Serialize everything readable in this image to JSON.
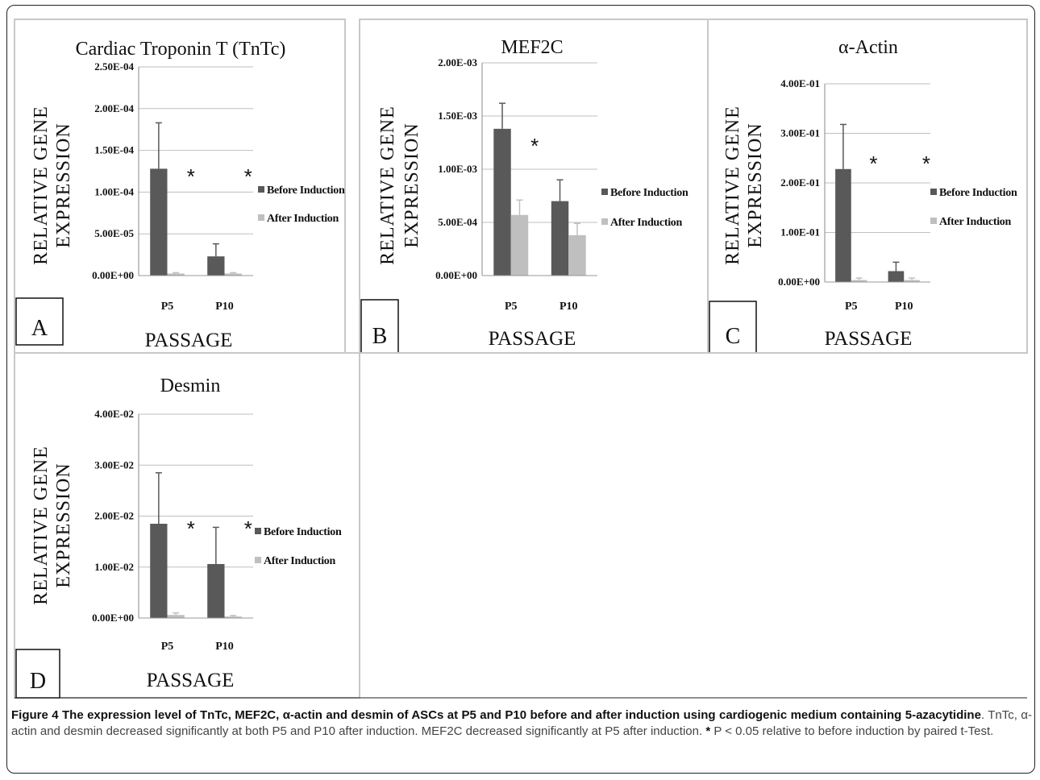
{
  "panels": [
    {
      "letter": "A",
      "title": "Cardiac Troponin T (TnTc)",
      "ylabel_line1": "RELATIVE GENE",
      "ylabel_line2": "EXPRESSION",
      "xlabel": "PASSAGE",
      "legend": [
        "Before Induction",
        "After Induction"
      ]
    },
    {
      "letter": "B",
      "title": "MEF2C",
      "ylabel_line1": "RELATIVE GENE",
      "ylabel_line2": "EXPRESSION",
      "xlabel": "PASSAGE",
      "legend": [
        "Before Induction",
        "After Induction"
      ]
    },
    {
      "letter": "C",
      "title": "α-Actin",
      "ylabel_line1": "RELATIVE GENE",
      "ylabel_line2": "EXPRESSION",
      "xlabel": "PASSAGE",
      "legend": [
        "Before Induction",
        "After Induction"
      ]
    },
    {
      "letter": "D",
      "title": "Desmin",
      "ylabel_line1": "RELATIVE GENE",
      "ylabel_line2": "EXPRESSION",
      "xlabel": "PASSAGE",
      "legend": [
        "Before Induction",
        "After Induction"
      ]
    }
  ],
  "chart_data": [
    {
      "type": "bar",
      "title": "Cardiac Troponin T (TnTc)",
      "xlabel": "PASSAGE",
      "ylabel": "RELATIVE GENE EXPRESSION",
      "categories": [
        "P5",
        "P10"
      ],
      "ylim": [
        0,
        0.00025
      ],
      "ytick_values": [
        0,
        5e-05,
        0.0001,
        0.00015,
        0.0002,
        0.00025
      ],
      "ytick_labels": [
        "0.00E+00",
        "5.00E-05",
        "1.00E-04",
        "1.50E-04",
        "2.00E-04",
        "2.50E-04"
      ],
      "series": [
        {
          "name": "Before Induction",
          "color": "#595959",
          "values": [
            0.000128,
            2.3e-05
          ],
          "errors": [
            5.5e-05,
            1.5e-05
          ]
        },
        {
          "name": "After Induction",
          "color": "#bfbfbf",
          "values": [
            2.5e-06,
            2.5e-06
          ],
          "errors": [
            1e-06,
            1e-06
          ]
        }
      ],
      "significance": [
        "*",
        "*"
      ],
      "grid": true,
      "legend_position": "right"
    },
    {
      "type": "bar",
      "title": "MEF2C",
      "xlabel": "PASSAGE",
      "ylabel": "RELATIVE GENE EXPRESSION",
      "categories": [
        "P5",
        "P10"
      ],
      "ylim": [
        0,
        0.002
      ],
      "ytick_values": [
        0,
        0.0005,
        0.001,
        0.0015,
        0.002
      ],
      "ytick_labels": [
        "0.00E+00",
        "5.00E-04",
        "1.00E-03",
        "1.50E-03",
        "2.00E-03"
      ],
      "series": [
        {
          "name": "Before Induction",
          "color": "#595959",
          "values": [
            0.00138,
            0.0007
          ],
          "errors": [
            0.00024,
            0.0002
          ]
        },
        {
          "name": "After Induction",
          "color": "#bfbfbf",
          "values": [
            0.00057,
            0.00038
          ],
          "errors": [
            0.00014,
            0.00011
          ]
        }
      ],
      "significance": [
        "*",
        ""
      ],
      "grid": true,
      "legend_position": "right"
    },
    {
      "type": "bar",
      "title": "α-Actin",
      "xlabel": "PASSAGE",
      "ylabel": "RELATIVE GENE EXPRESSION",
      "categories": [
        "P5",
        "P10"
      ],
      "ylim": [
        0,
        0.4
      ],
      "ytick_values": [
        0,
        0.1,
        0.2,
        0.3,
        0.4
      ],
      "ytick_labels": [
        "0.00E+00",
        "1.00E-01",
        "2.00E-01",
        "3.00E-01",
        "4.00E-01"
      ],
      "series": [
        {
          "name": "Before Induction",
          "color": "#595959",
          "values": [
            0.228,
            0.022
          ],
          "errors": [
            0.09,
            0.018
          ]
        },
        {
          "name": "After Induction",
          "color": "#bfbfbf",
          "values": [
            0.004,
            0.004
          ],
          "errors": [
            0.004,
            0.004
          ]
        }
      ],
      "significance": [
        "*",
        "*"
      ],
      "grid": true,
      "legend_position": "right"
    },
    {
      "type": "bar",
      "title": "Desmin",
      "xlabel": "PASSAGE",
      "ylabel": "RELATIVE GENE EXPRESSION",
      "categories": [
        "P5",
        "P10"
      ],
      "ylim": [
        0,
        0.04
      ],
      "ytick_values": [
        0,
        0.01,
        0.02,
        0.03,
        0.04
      ],
      "ytick_labels": [
        "0.00E+00",
        "1.00E-02",
        "2.00E-02",
        "3.00E-02",
        "4.00E-02"
      ],
      "series": [
        {
          "name": "Before Induction",
          "color": "#595959",
          "values": [
            0.0185,
            0.0106
          ],
          "errors": [
            0.01,
            0.0072
          ]
        },
        {
          "name": "After Induction",
          "color": "#bfbfbf",
          "values": [
            0.0006,
            0.0003
          ],
          "errors": [
            0.0004,
            0.0002
          ]
        }
      ],
      "significance": [
        "*",
        "*"
      ],
      "grid": true,
      "legend_position": "right"
    }
  ],
  "caption": {
    "bold": "Figure 4 The expression level of TnTc, MEF2C, α-actin and desmin of ASCs at P5 and P10 before and after induction using cardiogenic medium containing 5-azacytidine",
    "body": ". TnTc, α-actin and desmin decreased significantly at both P5 and P10 after induction. MEF2C decreased significantly at P5 after induction. ",
    "star": "*",
    "tail": " P < 0.05 relative to before induction by paired t-Test."
  }
}
